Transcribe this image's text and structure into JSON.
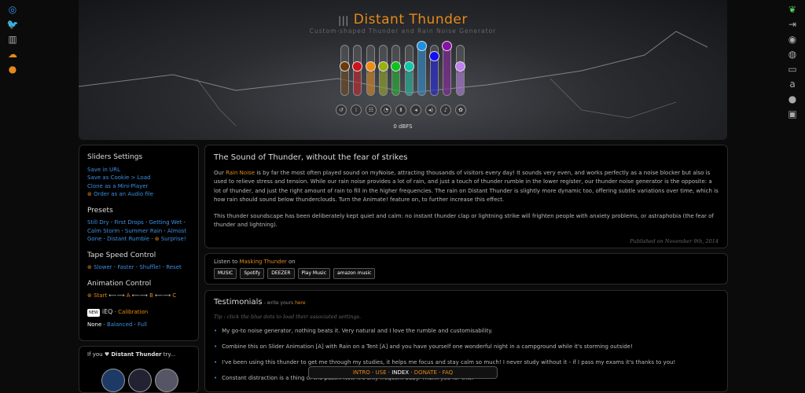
{
  "left_icons": [
    "stats-icon",
    "twitter-facebook-icon",
    "map-icon",
    "cloud-comment-icon",
    "leaf-icon"
  ],
  "right_icons": [
    "eco-hand-icon",
    "login-icon",
    "piggy-bank-icon",
    "cd-icon",
    "tv-icon",
    "amazon-icon",
    "apple-icon",
    "android-icon"
  ],
  "header": {
    "title": "Distant Thunder",
    "subtitle": "Custom-shaped Thunder and Rain Noise Generator",
    "level": "0 dBFS",
    "sliders": [
      {
        "color": "#6b3a0c",
        "value": 0.5
      },
      {
        "color": "#d0101a",
        "value": 0.5
      },
      {
        "color": "#f08a10",
        "value": 0.5
      },
      {
        "color": "#98b010",
        "value": 0.5
      },
      {
        "color": "#10c020",
        "value": 0.5
      },
      {
        "color": "#10c8a8",
        "value": 0.5
      },
      {
        "color": "#1a90e0",
        "value": 1.0
      },
      {
        "color": "#1010f0",
        "value": 0.75
      },
      {
        "color": "#8a10a8",
        "value": 1.0
      },
      {
        "color": "#c080f0",
        "value": 0.5
      }
    ],
    "controls": [
      "reset-icon",
      "presets-icon",
      "animate-icon",
      "timer-icon",
      "pause-icon",
      "volume-down-icon",
      "volume-up-icon",
      "bell-icon",
      "settings-icon"
    ]
  },
  "sidebar": {
    "sliders_title": "Sliders Settings",
    "save_url": "Save in URL",
    "save_cookie": "Save as Cookie > Load",
    "clone": "Clone as a Mini-Player",
    "order": "Order as an Audio file",
    "presets_title": "Presets",
    "presets": [
      "Still Dry",
      "First Drops",
      "Getting Wet",
      "Calm Storm",
      "Summer Rain",
      "Almost Gone",
      "Distant Rumble",
      "Surprise!"
    ],
    "tape_title": "Tape Speed Control",
    "tape": [
      "Slower",
      "Faster",
      "Shuffle!",
      "Reset"
    ],
    "anim_title": "Animation Control",
    "anim": [
      "Start",
      "A",
      "B",
      "C"
    ],
    "ieq_badge": "NEW",
    "ieq": "iEQ",
    "calibration": "Calibration",
    "eq_none": "None",
    "eq_balanced": "Balanced",
    "eq_full": "Full"
  },
  "try": {
    "prefix": "If you",
    "name": "Distant Thunder",
    "suffix": "try..."
  },
  "about": {
    "title": "The Sound of Thunder, without the fear of strikes",
    "p1_a": "Our ",
    "p1_link": "Rain Noise",
    "p1_b": " is by far the most often played sound on myNoise, attracting thousands of visitors every day! It sounds very even, and works perfectly as a noise blocker but also is used to relieve stress and tension. While our rain noise provides a lot of rain, and just a touch of thunder rumble in the lower register, our thunder noise generator is the opposite: a lot of thunder, and just the right amount of rain to fill in the higher frequencies. The rain on Distant Thunder is slightly more dynamic too, offering subtle variations over time, which is how rain should sound below thunderclouds. Turn the Animate! feature on, to further increase this effect.",
    "p2": "This thunder soundscape has been deliberately kept quiet and calm: no instant thunder clap or lightning strike will frighten people with anxiety problems, or astraphobia (the fear of thunder and lightning).",
    "published": "Published on November 9th, 2014"
  },
  "listen": {
    "prefix": "Listen to ",
    "link": "Masking Thunder",
    "suffix": " on",
    "services": [
      "MUSIC",
      "Spotify",
      "DEEZER",
      "Play Music",
      "amazon music"
    ]
  },
  "testimonials": {
    "title": "Testimonials",
    "write": " - write yours ",
    "here": "here",
    "tip": "Tip : click the blue dots to load their associated settings.",
    "items": [
      "My go-to noise generator, nothing beats it. Very natural and I love the rumble and customisability.",
      "Combine this on Slider Animation [A] with Rain on a Tent [A] and you have yourself one wonderful night in a campground while it's storming outside!",
      "I've been using this thunder to get me through my studies, it helps me focus and stay calm so much! I never study without it - if I pass my exams it's thanks to you!",
      "Constant distraction is a thing of the past... Now it's only frequent baby. Thank you for this!"
    ]
  },
  "nav": [
    "INTRO",
    "USE",
    "INDEX",
    "DONATE",
    "FAQ"
  ]
}
